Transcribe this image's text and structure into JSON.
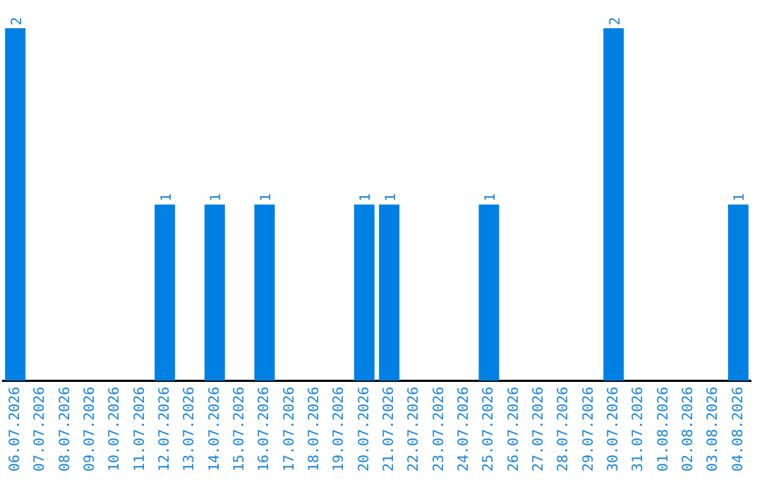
{
  "chart_data": {
    "type": "bar",
    "tick_labels": "x",
    "color": "#0080e2",
    "grid": false,
    "legend": false,
    "categories": [
      "06.07.2026",
      "07.07.2026",
      "08.07.2026",
      "09.07.2026",
      "10.07.2026",
      "11.07.2026",
      "12.07.2026",
      "13.07.2026",
      "14.07.2026",
      "15.07.2026",
      "16.07.2026",
      "17.07.2026",
      "18.07.2026",
      "19.07.2026",
      "20.07.2026",
      "21.07.2026",
      "22.07.2026",
      "23.07.2026",
      "24.07.2026",
      "25.07.2026",
      "26.07.2026",
      "27.07.2026",
      "28.07.2026",
      "29.07.2026",
      "30.07.2026",
      "31.07.2026",
      "01.08.2026",
      "02.08.2026",
      "03.08.2026",
      "04.08.2026"
    ],
    "values": [
      2,
      0,
      0,
      0,
      0,
      0,
      1,
      0,
      1,
      0,
      1,
      0,
      0,
      0,
      1,
      1,
      0,
      0,
      0,
      1,
      0,
      0,
      0,
      0,
      2,
      0,
      0,
      0,
      0,
      1
    ],
    "value_labels": [
      "2",
      null,
      null,
      null,
      null,
      null,
      "1",
      null,
      "1",
      null,
      "1",
      null,
      null,
      null,
      "1",
      "1",
      null,
      null,
      null,
      "1",
      null,
      null,
      null,
      null,
      "2",
      null,
      null,
      null,
      null,
      "1"
    ]
  }
}
